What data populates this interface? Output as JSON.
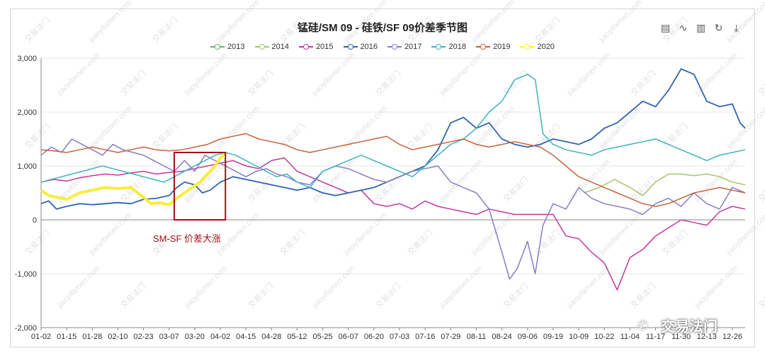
{
  "title": "锰硅/SM 09 - 硅铁/SF 09价差季节图",
  "toolbar": [
    {
      "name": "data-view-icon",
      "glyph": "▤"
    },
    {
      "name": "line-chart-icon",
      "glyph": "∿"
    },
    {
      "name": "bar-chart-icon",
      "glyph": "▥"
    },
    {
      "name": "refresh-icon",
      "glyph": "↻"
    },
    {
      "name": "download-icon",
      "glyph": "⤓"
    }
  ],
  "watermark": "交易法门",
  "watermark_url": "jiaoyifamen.com",
  "annotation": {
    "label": "SM-SF 价差大涨",
    "color": "#a01018"
  },
  "brand": {
    "icon": "✆",
    "text": "交易法门"
  },
  "chart_data": {
    "type": "line",
    "title": "锰硅/SM 09 - 硅铁/SF 09价差季节图",
    "x_labels": [
      "01-02",
      "01-15",
      "01-28",
      "02-10",
      "02-23",
      "03-07",
      "03-20",
      "04-02",
      "04-15",
      "04-28",
      "05-12",
      "05-25",
      "06-07",
      "06-20",
      "07-03",
      "07-16",
      "07-29",
      "08-11",
      "08-24",
      "09-06",
      "09-19",
      "10-09",
      "10-22",
      "11-04",
      "11-17",
      "11-30",
      "12-13",
      "12-26"
    ],
    "x_range": [
      0,
      27.5
    ],
    "y_range": [
      -2000,
      3000
    ],
    "y_ticks": [
      -2000,
      -1000,
      0,
      1000,
      2000,
      3000
    ],
    "y_tick_labels": [
      "-2,000",
      "-1,000",
      "0",
      "1,000",
      "2,000",
      "3,000"
    ],
    "highlight_box": {
      "x0": 5.2,
      "x1": 7.2,
      "y0": 0,
      "y1": 1250
    },
    "series": [
      {
        "name": "2013",
        "color": "#62b66a",
        "width": 1.5,
        "x": [],
        "y": []
      },
      {
        "name": "2014",
        "color": "#a7c36f",
        "width": 1.5,
        "x": [
          21.2,
          21.8,
          22.4,
          23.0,
          23.5,
          24.0,
          24.5,
          25.0,
          25.5,
          26.0,
          26.5,
          27.0,
          27.5
        ],
        "y": [
          500,
          600,
          750,
          600,
          450,
          700,
          850,
          850,
          820,
          850,
          800,
          700,
          650
        ]
      },
      {
        "name": "2015",
        "color": "#c0399d",
        "width": 1.5,
        "x": [
          0,
          0.5,
          1,
          1.5,
          2,
          2.5,
          3,
          3.5,
          4,
          4.5,
          5,
          5.5,
          6,
          6.5,
          7,
          7.5,
          8,
          8.5,
          9,
          9.5,
          10,
          10.5,
          11,
          11.5,
          12,
          12.5,
          13,
          13.5,
          14,
          14.5,
          15,
          15.5,
          16,
          16.5,
          17,
          17.5,
          18,
          18.5,
          19,
          19.5,
          20,
          20.5,
          21,
          21.5,
          22,
          22.5,
          23,
          23.5,
          24,
          24.5,
          25,
          25.5,
          26,
          26.5,
          27,
          27.5
        ],
        "y": [
          700,
          750,
          720,
          780,
          820,
          850,
          830,
          870,
          900,
          850,
          880,
          900,
          950,
          1000,
          1050,
          1100,
          1000,
          950,
          1100,
          1150,
          900,
          800,
          700,
          600,
          500,
          550,
          300,
          250,
          300,
          200,
          350,
          250,
          200,
          150,
          100,
          200,
          150,
          100,
          100,
          100,
          100,
          -300,
          -350,
          -600,
          -800,
          -1300,
          -700,
          -550,
          -300,
          -150,
          0,
          -50,
          -100,
          150,
          250,
          200
        ]
      },
      {
        "name": "2016",
        "color": "#2f64b0",
        "width": 1.8,
        "x": [
          0,
          0.3,
          0.6,
          1,
          1.5,
          2,
          2.5,
          3,
          3.5,
          4,
          4.5,
          5,
          5.3,
          5.6,
          6,
          6.3,
          6.6,
          7,
          7.5,
          8,
          8.5,
          9,
          9.5,
          10,
          10.5,
          11,
          11.5,
          12,
          12.5,
          13,
          13.5,
          14,
          14.5,
          15,
          15.5,
          16,
          16.5,
          17,
          17.5,
          18,
          18.5,
          19,
          19.5,
          20,
          20.5,
          21,
          21.5,
          22,
          22.5,
          23,
          23.5,
          24,
          24.5,
          25,
          25.5,
          26,
          26.5,
          27,
          27.3,
          27.5
        ],
        "y": [
          300,
          350,
          200,
          250,
          300,
          280,
          300,
          320,
          300,
          380,
          400,
          450,
          600,
          700,
          650,
          500,
          550,
          700,
          800,
          750,
          700,
          650,
          600,
          550,
          600,
          500,
          450,
          500,
          550,
          600,
          700,
          800,
          900,
          1000,
          1300,
          1800,
          1900,
          1700,
          1800,
          1500,
          1400,
          1350,
          1400,
          1500,
          1450,
          1400,
          1500,
          1700,
          1800,
          2000,
          2200,
          2100,
          2400,
          2800,
          2700,
          2200,
          2100,
          2150,
          1800,
          1700
        ]
      },
      {
        "name": "2017",
        "color": "#8a7cc4",
        "width": 1.5,
        "x": [
          0,
          0.4,
          0.8,
          1.2,
          1.6,
          2,
          2.4,
          2.8,
          3.2,
          3.6,
          4,
          4.4,
          4.8,
          5.2,
          5.6,
          6,
          6.4,
          6.8,
          7.2,
          7.6,
          8,
          8.4,
          8.8,
          9.2,
          9.6,
          10,
          10.5,
          11,
          11.5,
          12,
          12.5,
          13,
          13.5,
          14,
          14.5,
          15,
          15.5,
          16,
          16.5,
          17,
          17.5,
          18,
          18.3,
          18.6,
          19,
          19.3,
          19.6,
          20,
          20.5,
          21,
          21.5,
          22,
          22.5,
          23,
          23.5,
          24,
          24.5,
          25,
          25.5,
          26,
          26.5,
          27,
          27.5
        ],
        "y": [
          1200,
          1350,
          1250,
          1500,
          1400,
          1300,
          1200,
          1400,
          1300,
          1250,
          1200,
          1100,
          1000,
          900,
          1100,
          900,
          1200,
          1100,
          1000,
          900,
          800,
          900,
          950,
          850,
          800,
          700,
          650,
          900,
          1000,
          950,
          850,
          750,
          700,
          800,
          900,
          950,
          1000,
          700,
          600,
          500,
          200,
          -600,
          -1100,
          -900,
          -400,
          -1000,
          -100,
          300,
          200,
          600,
          400,
          300,
          250,
          200,
          100,
          300,
          400,
          250,
          500,
          300,
          200,
          600,
          500
        ]
      },
      {
        "name": "2018",
        "color": "#3fb3bd",
        "width": 1.5,
        "x": [
          0,
          0.4,
          0.8,
          1.2,
          1.6,
          2,
          2.4,
          2.8,
          3.2,
          3.6,
          4,
          4.4,
          4.8,
          5.2,
          5.6,
          6,
          6.4,
          6.8,
          7.2,
          7.6,
          8,
          8.4,
          8.8,
          9.2,
          9.6,
          10,
          10.5,
          11,
          11.5,
          12,
          12.5,
          13,
          13.5,
          14,
          14.5,
          15,
          15.5,
          16,
          16.5,
          17,
          17.5,
          18,
          18.5,
          19,
          19.3,
          19.6,
          20,
          20.5,
          21,
          21.5,
          22,
          22.5,
          23,
          23.5,
          24,
          24.5,
          25,
          25.5,
          26,
          26.5,
          27,
          27.5
        ],
        "y": [
          700,
          750,
          800,
          850,
          900,
          950,
          1000,
          950,
          900,
          850,
          800,
          750,
          700,
          800,
          900,
          1000,
          1100,
          1200,
          1250,
          1200,
          1100,
          1000,
          900,
          800,
          850,
          700,
          600,
          900,
          1000,
          1100,
          1200,
          1100,
          1000,
          900,
          800,
          1000,
          1200,
          1400,
          1500,
          1700,
          2000,
          2200,
          2600,
          2700,
          2600,
          1600,
          1400,
          1300,
          1250,
          1200,
          1300,
          1350,
          1400,
          1450,
          1500,
          1400,
          1300,
          1200,
          1100,
          1200,
          1250,
          1300
        ]
      },
      {
        "name": "2019",
        "color": "#c4643a",
        "width": 1.5,
        "x": [
          0,
          0.5,
          1,
          1.5,
          2,
          2.5,
          3,
          3.5,
          4,
          4.5,
          5,
          5.5,
          6,
          6.5,
          7,
          7.5,
          8,
          8.5,
          9,
          9.5,
          10,
          10.5,
          11,
          11.5,
          12,
          12.5,
          13,
          13.5,
          14,
          14.5,
          15,
          15.5,
          16,
          16.5,
          17,
          17.5,
          18,
          18.5,
          19,
          19.5,
          20,
          20.5,
          21,
          21.5,
          22,
          22.5,
          23,
          23.5,
          24,
          24.5,
          25,
          25.5,
          26,
          26.5,
          27,
          27.5
        ],
        "y": [
          1300,
          1280,
          1250,
          1300,
          1350,
          1300,
          1250,
          1300,
          1350,
          1300,
          1280,
          1300,
          1350,
          1400,
          1500,
          1550,
          1600,
          1500,
          1450,
          1400,
          1300,
          1250,
          1300,
          1350,
          1400,
          1450,
          1500,
          1550,
          1400,
          1300,
          1350,
          1400,
          1450,
          1500,
          1400,
          1350,
          1400,
          1450,
          1400,
          1350,
          1200,
          1000,
          800,
          700,
          600,
          500,
          400,
          300,
          250,
          300,
          400,
          500,
          550,
          600,
          550,
          500
        ]
      },
      {
        "name": "2020",
        "color": "#f7ee3a",
        "width": 4,
        "x": [
          0,
          0.3,
          0.6,
          1,
          1.5,
          2,
          2.5,
          3,
          3.5,
          4,
          4.3,
          4.6,
          5,
          5.3,
          5.6,
          5.9,
          6.2,
          6.5,
          6.8,
          7,
          7.2
        ],
        "y": [
          550,
          450,
          420,
          380,
          500,
          550,
          600,
          580,
          600,
          420,
          300,
          320,
          280,
          400,
          500,
          600,
          700,
          850,
          1000,
          1150,
          1250
        ]
      }
    ]
  }
}
